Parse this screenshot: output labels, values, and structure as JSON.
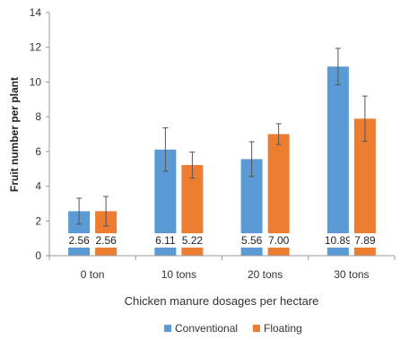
{
  "chart_data": {
    "type": "bar",
    "categories": [
      "0  ton",
      "10 tons",
      "20 tons",
      "30 tons"
    ],
    "xlabel": "Chicken manure dosages per hectare",
    "ylabel": "Fruit number per plant",
    "ylim": [
      0,
      14
    ],
    "yticks": [
      0,
      2,
      4,
      6,
      8,
      10,
      12,
      14
    ],
    "grid": false,
    "legend_position": "bottom",
    "series": [
      {
        "name": "Conventional",
        "color": "#5B9BD5",
        "values": [
          2.56,
          6.11,
          5.56,
          10.89
        ],
        "error": [
          0.75,
          1.25,
          1.0,
          1.05
        ],
        "labels": [
          "2.56",
          "6.11",
          "5.56",
          "10.89"
        ]
      },
      {
        "name": "Floating",
        "color": "#ED7D31",
        "values": [
          2.56,
          5.22,
          7.0,
          7.89
        ],
        "error": [
          0.85,
          0.75,
          0.6,
          1.3
        ],
        "labels": [
          "2.56",
          "5.22",
          "7.00",
          "7.89"
        ]
      }
    ]
  }
}
